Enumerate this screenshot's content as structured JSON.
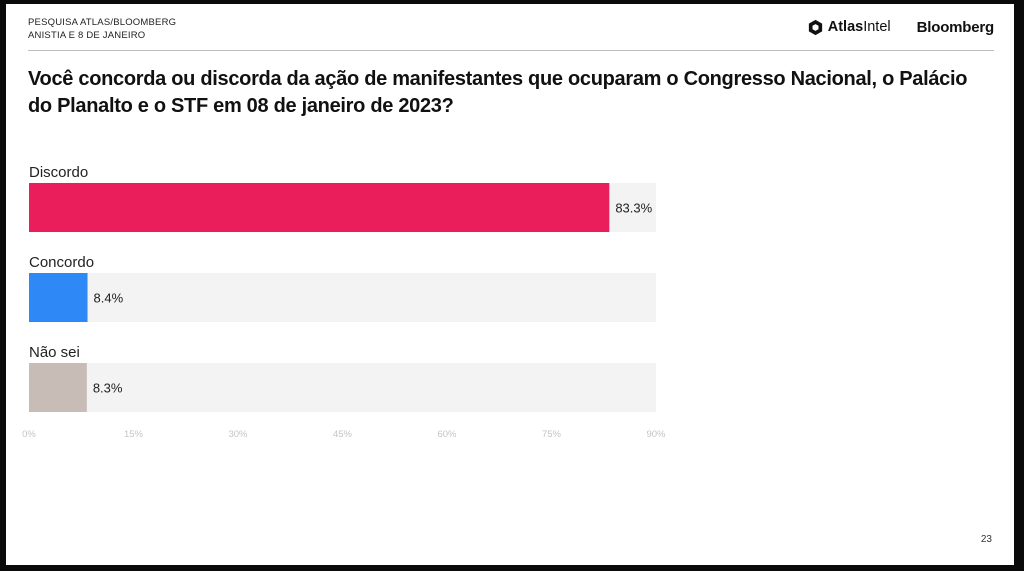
{
  "header": {
    "line1": "PESQUISA ATLAS/BLOOMBERG",
    "line2": "ANISTIA E 8 DE JANEIRO",
    "logo_atlas_bold": "Atlas",
    "logo_atlas_light": "Intel",
    "logo_bloomberg": "Bloomberg"
  },
  "page_number": "23",
  "colors": {
    "discordo": "#e91e5a",
    "concordo": "#2e88f5",
    "nao_sei": "#c7bcb6",
    "track": "#f3f3f3"
  },
  "chart_data": {
    "type": "bar",
    "orientation": "horizontal",
    "title": "Você concorda ou discorda da ação de manifestantes que ocuparam o Congresso Nacional, o Palácio do Planalto e o STF em 08 de janeiro de 2023?",
    "categories": [
      "Discordo",
      "Concordo",
      "Não sei"
    ],
    "values": [
      83.3,
      8.4,
      8.3
    ],
    "value_labels": [
      "83.3%",
      "8.4%",
      "8.3%"
    ],
    "xlim": [
      0,
      90
    ],
    "xticks": [
      0,
      15,
      30,
      45,
      60,
      75,
      90
    ],
    "xtick_labels": [
      "0%",
      "15%",
      "30%",
      "45%",
      "60%",
      "75%",
      "90%"
    ],
    "grid": false,
    "legend": "none"
  }
}
